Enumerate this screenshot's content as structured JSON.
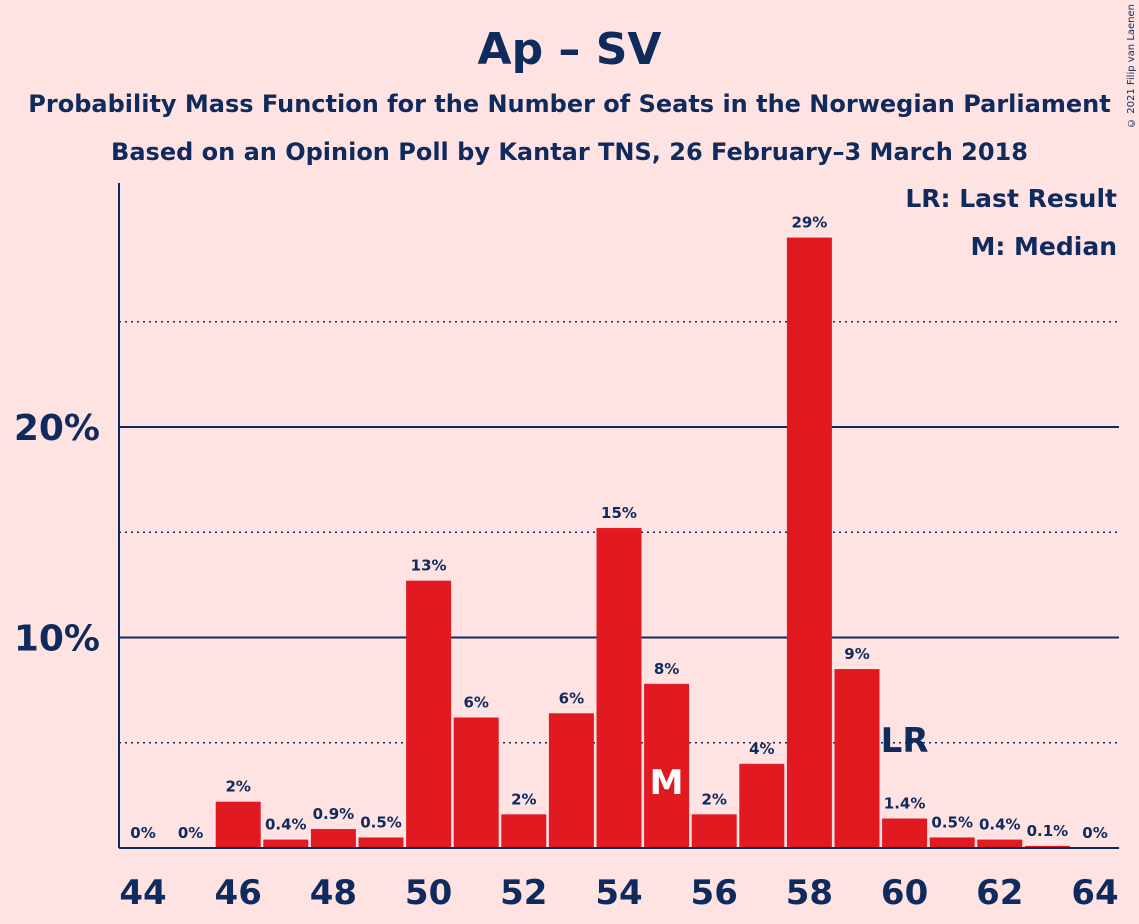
{
  "title": "Ap – SV",
  "subtitle1": "Probability Mass Function for the Number of Seats in the Norwegian Parliament",
  "subtitle2": "Based on an Opinion Poll by Kantar TNS, 26 February–3 March 2018",
  "copyright": "© 2021 Filip van Laenen",
  "legend": {
    "lr": "LR: Last Result",
    "m": "M: Median"
  },
  "colors": {
    "bar": "#E11A22",
    "text": "#0F2A5C",
    "background": "#FFE3E3"
  },
  "chart_data": {
    "type": "bar",
    "categories": [
      44,
      45,
      46,
      47,
      48,
      49,
      50,
      51,
      52,
      53,
      54,
      55,
      56,
      57,
      58,
      59,
      60,
      61,
      62,
      63,
      64
    ],
    "values": [
      0,
      0,
      2.2,
      0.4,
      0.9,
      0.5,
      12.7,
      6.2,
      1.6,
      6.4,
      15.2,
      7.8,
      1.6,
      4.0,
      29.0,
      8.5,
      1.4,
      0.5,
      0.4,
      0.1,
      0
    ],
    "data_labels": [
      "0%",
      "0%",
      "2%",
      "0.4%",
      "0.9%",
      "0.5%",
      "13%",
      "6%",
      "2%",
      "6%",
      "15%",
      "8%",
      "2%",
      "4%",
      "29%",
      "9%",
      "1.4%",
      "0.5%",
      "0.4%",
      "0.1%",
      "0%"
    ],
    "x_tick_labels": [
      "44",
      "46",
      "48",
      "50",
      "52",
      "54",
      "56",
      "58",
      "60",
      "62",
      "64"
    ],
    "y_tick_labels": [
      "10%",
      "20%"
    ],
    "y_major_ticks": [
      10,
      20
    ],
    "y_minor_ticks": [
      5,
      15,
      25
    ],
    "ylim": [
      0,
      31.6
    ],
    "median": {
      "seat": 55,
      "label": "M"
    },
    "last_result": {
      "seat": 60,
      "label": "LR"
    }
  }
}
